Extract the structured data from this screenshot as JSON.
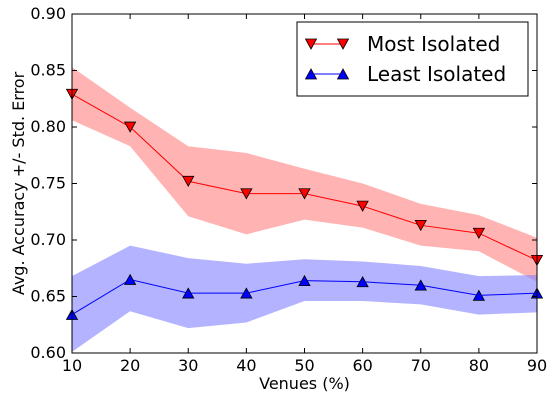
{
  "chart_data": {
    "type": "line",
    "title": "",
    "xlabel": "Venues (%)",
    "ylabel": "Avg. Accuracy +/- Std. Error",
    "xlim": [
      10,
      90
    ],
    "ylim": [
      0.6,
      0.9
    ],
    "x": [
      10,
      20,
      30,
      40,
      50,
      60,
      70,
      80,
      90
    ],
    "xticks": [
      "10",
      "20",
      "30",
      "40",
      "50",
      "60",
      "70",
      "80",
      "90"
    ],
    "yticks": [
      "0.60",
      "0.65",
      "0.70",
      "0.75",
      "0.80",
      "0.85",
      "0.90"
    ],
    "grid": false,
    "legend_position": "top-right",
    "series": [
      {
        "name": "Most Isolated",
        "color": "#ff0000",
        "band_color": "#ff8080",
        "marker": "triangle-down",
        "values": [
          0.829,
          0.8,
          0.752,
          0.741,
          0.741,
          0.73,
          0.713,
          0.706,
          0.682
        ],
        "lower": [
          0.806,
          0.783,
          0.721,
          0.705,
          0.718,
          0.711,
          0.695,
          0.69,
          0.663
        ],
        "upper": [
          0.853,
          0.817,
          0.783,
          0.777,
          0.763,
          0.75,
          0.732,
          0.722,
          0.702
        ]
      },
      {
        "name": "Least Isolated",
        "color": "#0000ff",
        "band_color": "#8080ff",
        "marker": "triangle-up",
        "values": [
          0.634,
          0.665,
          0.653,
          0.653,
          0.664,
          0.663,
          0.66,
          0.651,
          0.653
        ],
        "lower": [
          0.601,
          0.637,
          0.622,
          0.627,
          0.646,
          0.646,
          0.643,
          0.634,
          0.636
        ],
        "upper": [
          0.668,
          0.695,
          0.684,
          0.679,
          0.683,
          0.681,
          0.677,
          0.668,
          0.669
        ]
      }
    ]
  }
}
